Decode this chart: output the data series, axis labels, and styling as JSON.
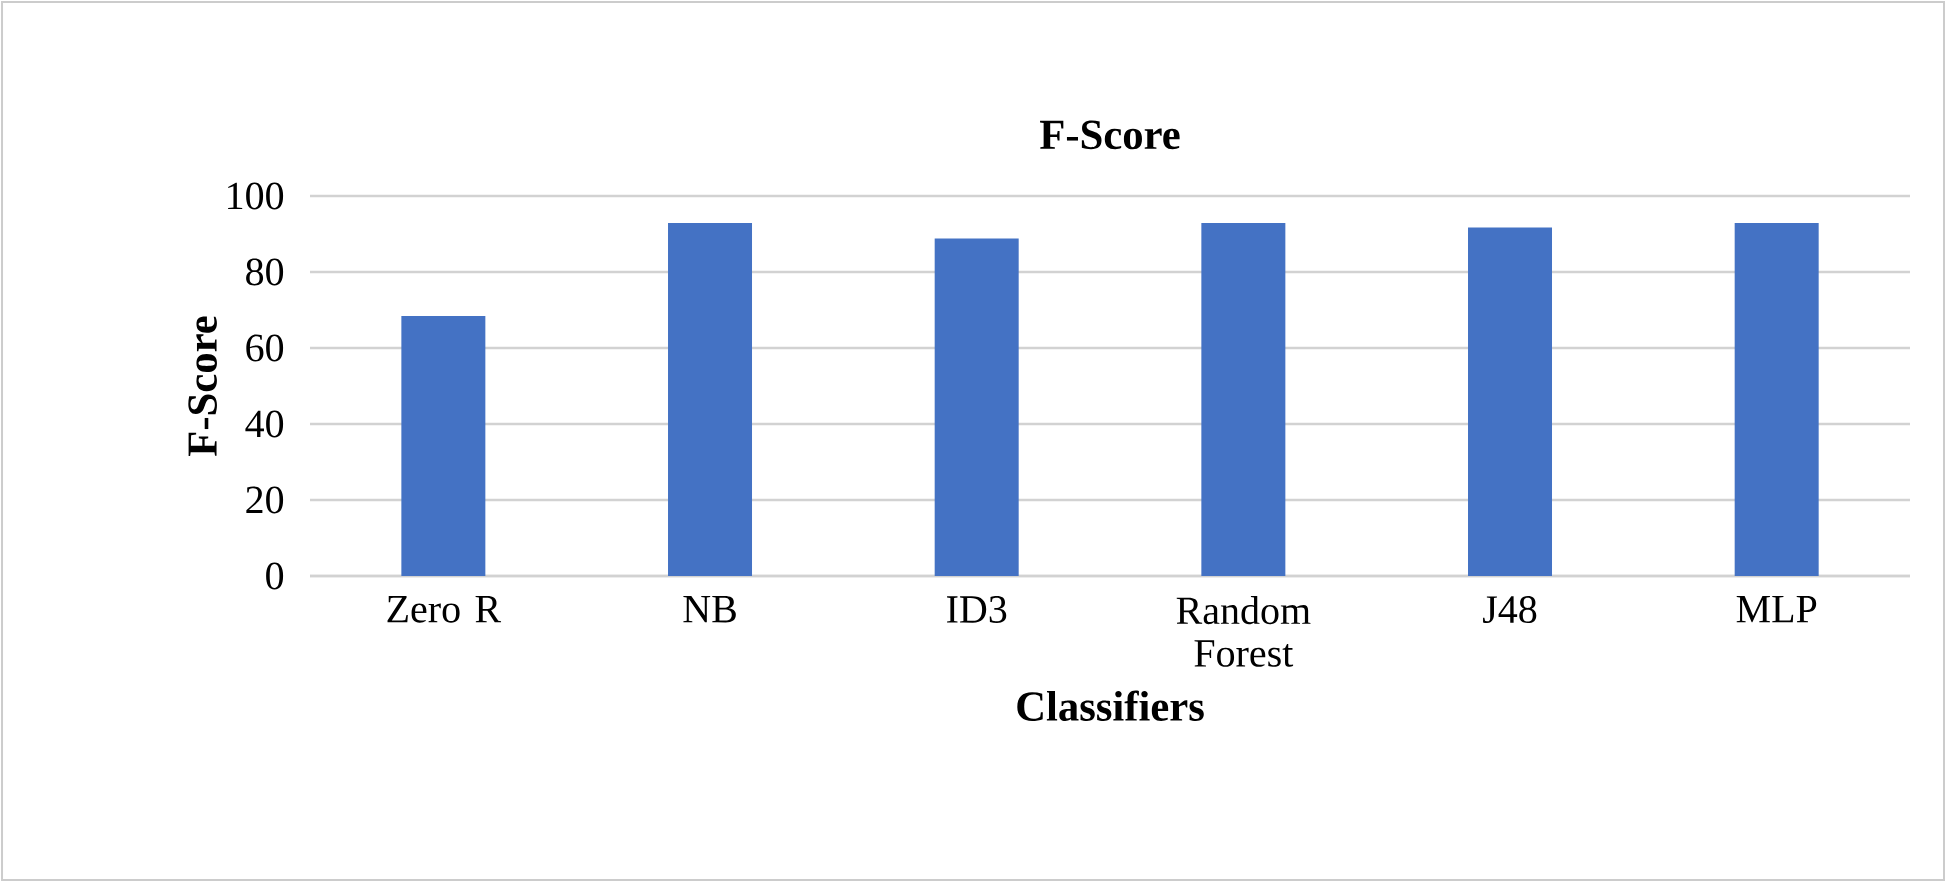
{
  "chart_data": {
    "type": "bar",
    "title": "F-Score",
    "xlabel": "Classifiers",
    "ylabel": "F-Score",
    "categories": [
      "Zero R",
      "NB",
      "ID3",
      "Random Forest",
      "J48",
      "MLP"
    ],
    "values": [
      68.4,
      92.9,
      88.8,
      92.9,
      91.7,
      92.9
    ],
    "color": "#4472c4",
    "ylim": [
      0,
      100
    ],
    "yticks": [
      0,
      20,
      40,
      60,
      80,
      100
    ],
    "grid": "y"
  }
}
